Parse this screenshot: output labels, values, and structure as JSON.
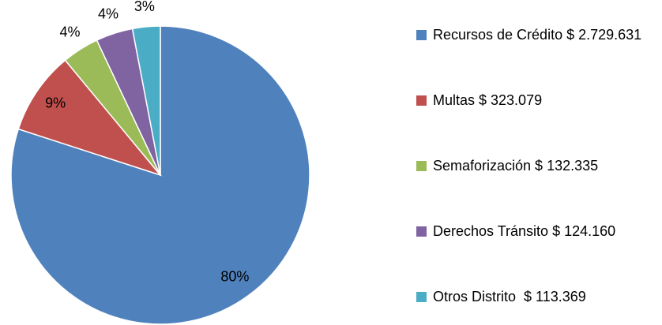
{
  "chart_data": {
    "type": "pie",
    "categories": [
      "Recursos de Crédito $ 2.729.631",
      "Multas $ 323.079",
      "Semaforización $ 132.335",
      "Derechos Tránsito $ 124.160",
      "Otros Distrito  $ 113.369"
    ],
    "values": [
      80,
      9,
      4,
      4,
      3
    ],
    "value_labels": [
      "80%",
      "9%",
      "4%",
      "4%",
      "3%"
    ],
    "colors": [
      "#4f81bd",
      "#c0504d",
      "#9bbb59",
      "#8064a2",
      "#4bacc6"
    ],
    "legend": "right"
  }
}
